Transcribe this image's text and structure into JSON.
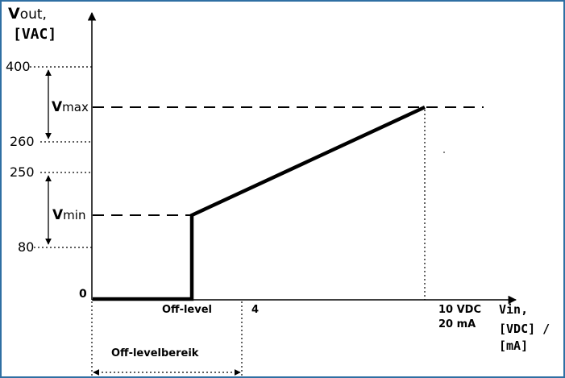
{
  "y_axis": {
    "label_v": "V",
    "label_out": "out,",
    "unit": "[VAC]",
    "ticks": [
      "400",
      "260",
      "250",
      "80",
      "0"
    ]
  },
  "levels": {
    "vmax_v": "V",
    "vmax_sub": "max",
    "vmin_v": "V",
    "vmin_sub": "min"
  },
  "x_axis": {
    "off_level": "Off-level",
    "tick_4": "4",
    "max_line1": "10 VDC",
    "max_line2": "20 mA",
    "label_line1": "Vin,",
    "label_line2": "[VDC] /",
    "label_line3": "[mA]"
  },
  "range_label": "Off-levelbereik",
  "colors": {
    "frame": "#2f6fa3",
    "ink": "#000000"
  }
}
